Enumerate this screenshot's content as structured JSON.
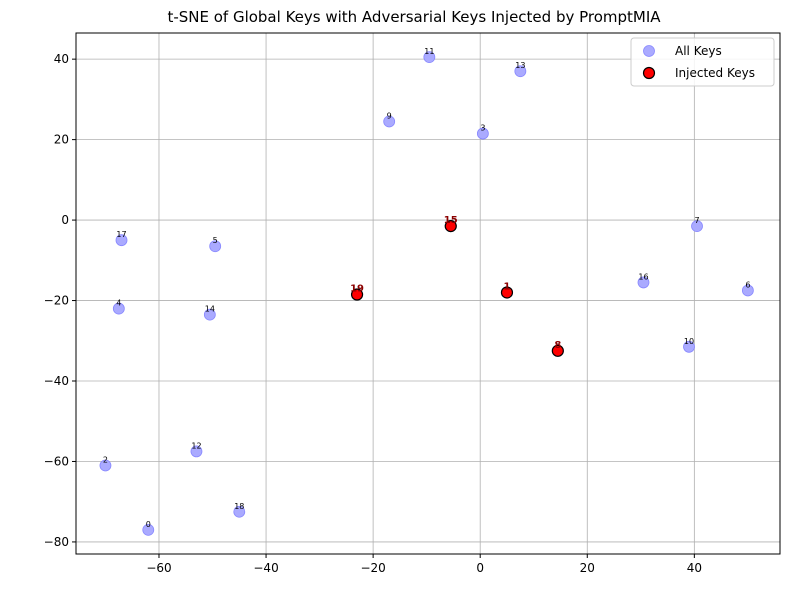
{
  "chart_data": {
    "type": "scatter",
    "title": "t-SNE of Global Keys with Adversarial Keys Injected by PromptMIA",
    "xlabel": "",
    "ylabel": "",
    "xlim": [
      -75.5,
      56
    ],
    "ylim": [
      -83,
      46.5
    ],
    "xticks": [
      -60,
      -40,
      -20,
      0,
      20,
      40
    ],
    "yticks": [
      -80,
      -60,
      -40,
      -20,
      0,
      20,
      40
    ],
    "grid": true,
    "legend_position": "top-right",
    "series": [
      {
        "name": "All Keys",
        "color": "#aaaaff",
        "edge_color": "#8888ff",
        "points": [
          {
            "label": "0",
            "x": -62,
            "y": -77
          },
          {
            "label": "1",
            "x": 5,
            "y": -18
          },
          {
            "label": "2",
            "x": -70,
            "y": -61
          },
          {
            "label": "3",
            "x": 0.5,
            "y": 21.5
          },
          {
            "label": "4",
            "x": -67.5,
            "y": -22
          },
          {
            "label": "5",
            "x": -49.5,
            "y": -6.5
          },
          {
            "label": "6",
            "x": 50,
            "y": -17.5
          },
          {
            "label": "7",
            "x": 40.5,
            "y": -1.5
          },
          {
            "label": "8",
            "x": 14.5,
            "y": -32.5
          },
          {
            "label": "9",
            "x": -17,
            "y": 24.5
          },
          {
            "label": "10",
            "x": 39,
            "y": -31.5
          },
          {
            "label": "11",
            "x": -9.5,
            "y": 40.5
          },
          {
            "label": "12",
            "x": -53,
            "y": -57.5
          },
          {
            "label": "13",
            "x": 7.5,
            "y": 37
          },
          {
            "label": "14",
            "x": -50.5,
            "y": -23.5
          },
          {
            "label": "15",
            "x": -5.5,
            "y": -1.5
          },
          {
            "label": "16",
            "x": 30.5,
            "y": -15.5
          },
          {
            "label": "17",
            "x": -67,
            "y": -5
          },
          {
            "label": "18",
            "x": -45,
            "y": -72.5
          },
          {
            "label": "19",
            "x": -23,
            "y": -18.5
          }
        ]
      },
      {
        "name": "Injected Keys",
        "color": "#ff0000",
        "edge_color": "#000000",
        "points": [
          {
            "label": "1",
            "x": 5,
            "y": -18
          },
          {
            "label": "8",
            "x": 14.5,
            "y": -32.5
          },
          {
            "label": "15",
            "x": -5.5,
            "y": -1.5
          },
          {
            "label": "19",
            "x": -23,
            "y": -18.5
          }
        ]
      }
    ]
  }
}
